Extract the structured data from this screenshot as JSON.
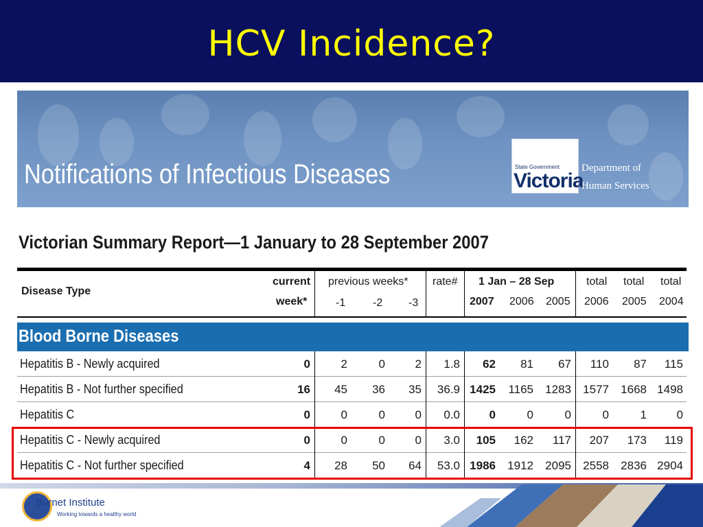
{
  "slide": {
    "title": "HCV Incidence?"
  },
  "banner": {
    "title": "Notifications of Infectious Diseases",
    "logo_small": "State Government",
    "logo_big": "Victoria",
    "dept_line1": "Department of",
    "dept_line2": "Human Services"
  },
  "report": {
    "title": "Victorian Summary Report—1 January to 28 September 2007"
  },
  "header": {
    "disease_type": "Disease Type",
    "current_1": "current",
    "current_2": "week*",
    "previous": "previous weeks*",
    "prev_1": "-1",
    "prev_2": "-2",
    "prev_3": "-3",
    "rate": "rate#",
    "ytd": "1 Jan –  28 Sep",
    "y2007": "2007",
    "y2006": "2006",
    "y2005": "2005",
    "total_1": "total",
    "total_2": "total",
    "total_3": "total",
    "t2006": "2006",
    "t2005": "2005",
    "t2004": "2004"
  },
  "section": {
    "label": "Blood Borne Diseases"
  },
  "rows": [
    {
      "name": "Hepatitis B - Newly acquired",
      "current": "0",
      "w1": "2",
      "w2": "0",
      "w3": "2",
      "rate": "1.8",
      "ytd2007": "62",
      "ytd2006": "81",
      "ytd2005": "67",
      "tot2006": "110",
      "tot2005": "87",
      "tot2004": "115"
    },
    {
      "name": "Hepatitis B - Not further specified",
      "current": "16",
      "w1": "45",
      "w2": "36",
      "w3": "35",
      "rate": "36.9",
      "ytd2007": "1425",
      "ytd2006": "1165",
      "ytd2005": "1283",
      "tot2006": "1577",
      "tot2005": "1668",
      "tot2004": "1498"
    },
    {
      "name": "Hepatitis C",
      "current": "0",
      "w1": "0",
      "w2": "0",
      "w3": "0",
      "rate": "0.0",
      "ytd2007": "0",
      "ytd2006": "0",
      "ytd2005": "0",
      "tot2006": "0",
      "tot2005": "1",
      "tot2004": "0"
    },
    {
      "name": "Hepatitis C - Newly acquired",
      "current": "0",
      "w1": "0",
      "w2": "0",
      "w3": "0",
      "rate": "3.0",
      "ytd2007": "105",
      "ytd2006": "162",
      "ytd2005": "117",
      "tot2006": "207",
      "tot2005": "173",
      "tot2004": "119"
    },
    {
      "name": "Hepatitis C - Not further specified",
      "current": "4",
      "w1": "28",
      "w2": "50",
      "w3": "64",
      "rate": "53.0",
      "ytd2007": "1986",
      "ytd2006": "1912",
      "ytd2005": "2095",
      "tot2006": "2558",
      "tot2005": "2836",
      "tot2004": "2904"
    }
  ],
  "footer": {
    "org_name": "Burnet Institute",
    "tagline": "Working towards a healthy world"
  },
  "colors": {
    "title_bg": "#0a0f5e",
    "title_text": "#ffff00",
    "section_band": "#1a6eb0",
    "highlight_border": "#e60000"
  }
}
